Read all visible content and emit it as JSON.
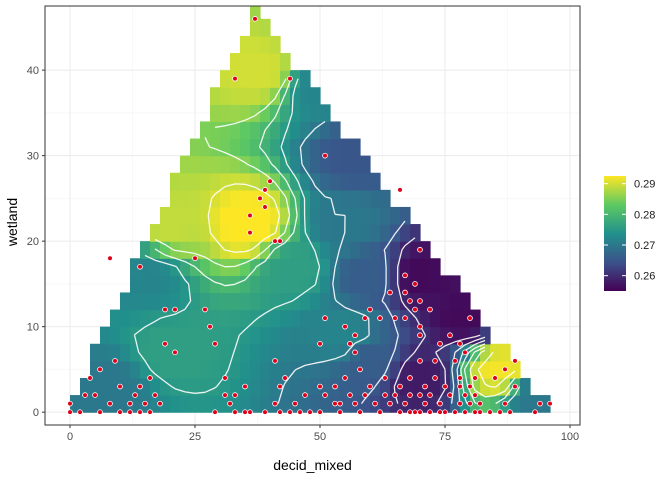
{
  "chart_data": {
    "type": "heatmap",
    "subtype": "interpolated raster with contour lines and scatter points (ternary triangle domain)",
    "xlabel": "decid_mixed",
    "ylabel": "wetland",
    "xlim": [
      -5,
      102
    ],
    "ylim": [
      -1.5,
      47.5
    ],
    "x_ticks": [
      0,
      25,
      50,
      75,
      100
    ],
    "y_ticks": [
      0,
      10,
      20,
      30,
      40
    ],
    "domain_triangle": [
      [
        0,
        0
      ],
      [
        37,
        46
      ],
      [
        95,
        0
      ]
    ],
    "grid": "on",
    "colorbar": {
      "palette": "viridis",
      "ticks": [
        0.26,
        0.27,
        0.28,
        0.29
      ],
      "range": [
        0.255,
        0.2925
      ],
      "placement": "right"
    },
    "surface_anchors": [
      {
        "x": 36,
        "y": 22,
        "value": 0.293
      },
      {
        "x": 38,
        "y": 40,
        "value": 0.29
      },
      {
        "x": 20,
        "y": 22,
        "value": 0.289
      },
      {
        "x": 70,
        "y": 16,
        "value": 0.256
      },
      {
        "x": 70,
        "y": 4,
        "value": 0.258
      },
      {
        "x": 79,
        "y": 11,
        "value": 0.256
      },
      {
        "x": 57,
        "y": 30,
        "value": 0.265
      },
      {
        "x": 55,
        "y": 22,
        "value": 0.27
      },
      {
        "x": 60,
        "y": 6,
        "value": 0.266
      },
      {
        "x": 55,
        "y": 9,
        "value": 0.272
      },
      {
        "x": 20,
        "y": 7,
        "value": 0.276
      },
      {
        "x": 15,
        "y": 16,
        "value": 0.272
      },
      {
        "x": 8,
        "y": 3,
        "value": 0.27
      },
      {
        "x": 86,
        "y": 5,
        "value": 0.292
      },
      {
        "x": 93,
        "y": 2,
        "value": 0.27
      },
      {
        "x": 50,
        "y": 38,
        "value": 0.272
      },
      {
        "x": 45,
        "y": 17,
        "value": 0.276
      },
      {
        "x": 60,
        "y": 16,
        "value": 0.266
      }
    ],
    "points": [
      [
        0,
        0
      ],
      [
        0,
        1
      ],
      [
        2,
        0
      ],
      [
        3,
        2
      ],
      [
        4,
        4
      ],
      [
        5,
        2
      ],
      [
        6,
        5
      ],
      [
        6,
        0
      ],
      [
        8,
        1
      ],
      [
        9,
        6
      ],
      [
        10,
        3
      ],
      [
        10,
        0
      ],
      [
        12,
        1
      ],
      [
        12,
        0
      ],
      [
        13,
        2
      ],
      [
        14,
        3
      ],
      [
        14,
        0
      ],
      [
        15,
        1
      ],
      [
        16,
        0
      ],
      [
        16,
        4
      ],
      [
        17,
        2
      ],
      [
        18,
        1
      ],
      [
        8,
        18
      ],
      [
        14,
        17
      ],
      [
        19,
        12
      ],
      [
        21,
        12
      ],
      [
        19,
        8
      ],
      [
        21,
        7
      ],
      [
        25,
        18
      ],
      [
        27,
        12
      ],
      [
        28,
        10
      ],
      [
        29,
        8
      ],
      [
        29,
        0
      ],
      [
        31,
        2
      ],
      [
        31,
        4
      ],
      [
        32,
        1
      ],
      [
        33,
        39
      ],
      [
        33,
        2
      ],
      [
        33,
        0
      ],
      [
        35,
        3
      ],
      [
        35,
        0
      ],
      [
        36,
        0
      ],
      [
        36,
        23
      ],
      [
        36,
        21
      ],
      [
        37,
        46
      ],
      [
        38,
        25
      ],
      [
        39,
        26
      ],
      [
        39,
        24
      ],
      [
        40,
        27
      ],
      [
        41,
        20
      ],
      [
        42,
        20
      ],
      [
        44,
        39
      ],
      [
        39,
        0
      ],
      [
        41,
        1
      ],
      [
        42,
        0
      ],
      [
        41,
        6
      ],
      [
        42,
        3
      ],
      [
        43,
        4
      ],
      [
        44,
        0
      ],
      [
        45,
        1
      ],
      [
        46,
        0
      ],
      [
        47,
        2
      ],
      [
        48,
        0
      ],
      [
        50,
        0
      ],
      [
        50,
        3
      ],
      [
        51,
        2
      ],
      [
        50,
        8
      ],
      [
        51,
        11
      ],
      [
        51,
        30
      ],
      [
        53,
        1
      ],
      [
        53,
        3
      ],
      [
        54,
        1
      ],
      [
        54,
        0
      ],
      [
        55,
        10
      ],
      [
        55,
        4
      ],
      [
        56,
        2
      ],
      [
        57,
        1
      ],
      [
        58,
        0
      ],
      [
        56,
        8
      ],
      [
        57,
        9
      ],
      [
        57,
        7
      ],
      [
        58,
        5
      ],
      [
        59,
        2
      ],
      [
        59,
        11
      ],
      [
        60,
        12
      ],
      [
        60,
        3
      ],
      [
        61,
        1
      ],
      [
        62,
        11
      ],
      [
        62,
        0
      ],
      [
        63,
        2
      ],
      [
        63,
        4
      ],
      [
        64,
        14
      ],
      [
        64,
        1
      ],
      [
        65,
        11
      ],
      [
        65,
        2
      ],
      [
        66,
        0
      ],
      [
        66,
        26
      ],
      [
        66,
        3
      ],
      [
        67,
        16
      ],
      [
        67,
        14
      ],
      [
        67,
        11
      ],
      [
        67,
        1
      ],
      [
        68,
        4
      ],
      [
        68,
        2
      ],
      [
        68,
        0
      ],
      [
        69,
        0
      ],
      [
        70,
        9
      ],
      [
        70,
        6
      ],
      [
        70,
        2
      ],
      [
        70,
        0
      ],
      [
        71,
        3
      ],
      [
        71,
        1
      ],
      [
        72,
        2
      ],
      [
        72,
        0
      ],
      [
        72,
        12
      ],
      [
        73,
        6
      ],
      [
        73,
        4
      ],
      [
        74,
        8
      ],
      [
        74,
        1
      ],
      [
        74,
        0
      ],
      [
        75,
        3
      ],
      [
        75,
        0
      ],
      [
        76,
        2
      ],
      [
        77,
        6
      ],
      [
        77,
        0
      ],
      [
        78,
        4
      ],
      [
        78,
        3
      ],
      [
        78,
        1
      ],
      [
        79,
        7
      ],
      [
        79,
        2
      ],
      [
        79,
        0
      ],
      [
        80,
        3
      ],
      [
        80,
        1
      ],
      [
        81,
        4
      ],
      [
        81,
        2
      ],
      [
        81,
        0
      ],
      [
        82,
        1
      ],
      [
        82,
        0
      ],
      [
        84,
        0
      ],
      [
        85,
        4
      ],
      [
        86,
        0
      ],
      [
        87,
        1
      ],
      [
        87,
        5
      ],
      [
        88,
        0
      ],
      [
        89,
        6
      ],
      [
        89,
        3
      ],
      [
        93,
        0
      ],
      [
        94,
        1
      ],
      [
        96,
        1
      ],
      [
        70,
        19
      ],
      [
        69,
        15
      ],
      [
        69,
        12
      ],
      [
        70,
        10
      ],
      [
        68,
        13
      ],
      [
        70,
        13
      ],
      [
        80,
        11
      ],
      [
        78,
        8
      ],
      [
        76,
        9
      ]
    ]
  }
}
